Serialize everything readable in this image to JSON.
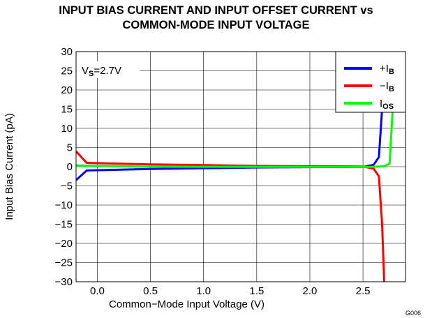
{
  "chart_data": {
    "type": "line",
    "title": [
      "INPUT BIAS CURRENT AND INPUT OFFSET CURRENT vs",
      "COMMON-MODE INPUT VOLTAGE"
    ],
    "xlabel": "Common−Mode Input Voltage (V)",
    "ylabel": "Input Bias Current (pA)",
    "xlim": [
      -0.2,
      2.9
    ],
    "ylim": [
      -30,
      30
    ],
    "x_ticks": [
      0.0,
      0.5,
      1.0,
      1.5,
      2.0,
      2.5
    ],
    "x_tick_labels": [
      "0.0",
      "0.5",
      "1.0",
      "1.5",
      "2.0",
      "2.5"
    ],
    "y_ticks": [
      30,
      25,
      20,
      15,
      10,
      5,
      0,
      -5,
      -10,
      -15,
      -20,
      -25,
      -30
    ],
    "y_tick_labels": [
      "30",
      "25",
      "20",
      "15",
      "10",
      "5",
      "0",
      "−5",
      "−10",
      "−15",
      "−20",
      "−25",
      "−30"
    ],
    "grid": true,
    "legend_position": "top-right",
    "annotation": {
      "prefix": "V",
      "sub": "S",
      "suffix": "=2.7V"
    },
    "figure_code": "G006",
    "series": [
      {
        "legend_main": "+I",
        "legend_sub": "B",
        "color": "#0000ff",
        "points": [
          [
            -0.2,
            -3.5
          ],
          [
            -0.1,
            -1.0
          ],
          [
            0.5,
            -0.6
          ],
          [
            1.0,
            -0.4
          ],
          [
            1.5,
            -0.2
          ],
          [
            2.0,
            -0.1
          ],
          [
            2.5,
            -0.05
          ],
          [
            2.6,
            0.5
          ],
          [
            2.65,
            2.5
          ],
          [
            2.68,
            15
          ],
          [
            2.7,
            30
          ]
        ]
      },
      {
        "legend_main": "−I",
        "legend_sub": "B",
        "color": "#ff0000",
        "points": [
          [
            -0.2,
            4.0
          ],
          [
            -0.1,
            1.0
          ],
          [
            0.5,
            0.6
          ],
          [
            1.0,
            0.4
          ],
          [
            1.5,
            0.2
          ],
          [
            2.0,
            0.1
          ],
          [
            2.5,
            0.05
          ],
          [
            2.6,
            -0.5
          ],
          [
            2.65,
            -2.5
          ],
          [
            2.68,
            -15
          ],
          [
            2.7,
            -30
          ]
        ]
      },
      {
        "legend_main": "I",
        "legend_sub": "OS",
        "color": "#00ff00",
        "points": [
          [
            -0.2,
            0.3
          ],
          [
            0.5,
            0.0
          ],
          [
            1.5,
            -0.05
          ],
          [
            2.5,
            -0.05
          ],
          [
            2.6,
            -0.05
          ],
          [
            2.7,
            0.1
          ],
          [
            2.75,
            0.8
          ],
          [
            2.78,
            15
          ],
          [
            2.8,
            30
          ]
        ]
      }
    ]
  }
}
